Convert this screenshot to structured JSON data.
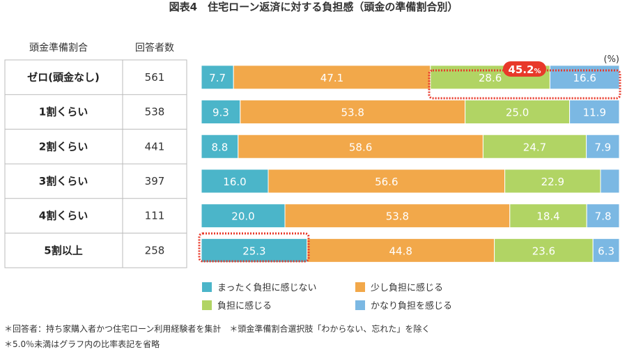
{
  "chart_data": {
    "type": "bar",
    "orientation": "horizontal",
    "stacked": true,
    "title": "図表4　住宅ローン返済に対する負担感（頭金の準備割合別）",
    "unit_label": "(%)",
    "table_headers": [
      "頭金準備割合",
      "回答者数"
    ],
    "categories": [
      "ゼロ(頭金なし)",
      "1割くらい",
      "2割くらい",
      "3割くらい",
      "4割くらい",
      "5割以上"
    ],
    "respondents": [
      561,
      538,
      441,
      397,
      111,
      258
    ],
    "series": [
      {
        "name": "まったく負担に感じない",
        "color": "#4BB5C9",
        "values": [
          7.7,
          9.3,
          8.8,
          16.0,
          20.0,
          25.3
        ]
      },
      {
        "name": "少し負担に感じる",
        "color": "#F2A84A",
        "values": [
          47.1,
          53.8,
          58.6,
          56.6,
          53.8,
          44.8
        ]
      },
      {
        "name": "負担に感じる",
        "color": "#B1D464",
        "values": [
          28.6,
          25.0,
          24.7,
          22.9,
          18.4,
          23.6
        ]
      },
      {
        "name": "かなり負担を感じる",
        "color": "#7BB8E3",
        "values": [
          16.6,
          11.9,
          7.9,
          4.5,
          7.8,
          6.3
        ]
      }
    ],
    "xlim": [
      0,
      100
    ],
    "legend_position": "bottom",
    "highlight_callout": "45.2",
    "highlight_callout_unit": "%",
    "highlight_color": "#E8392A",
    "notes": [
      "＊回答者：持ち家購入者かつ住宅ローン利用経験者を集計　＊頭金準備割合選択肢「わからない、忘れた」を除く",
      "＊5.0％未満はグラフ内の比率表記を省略"
    ]
  }
}
